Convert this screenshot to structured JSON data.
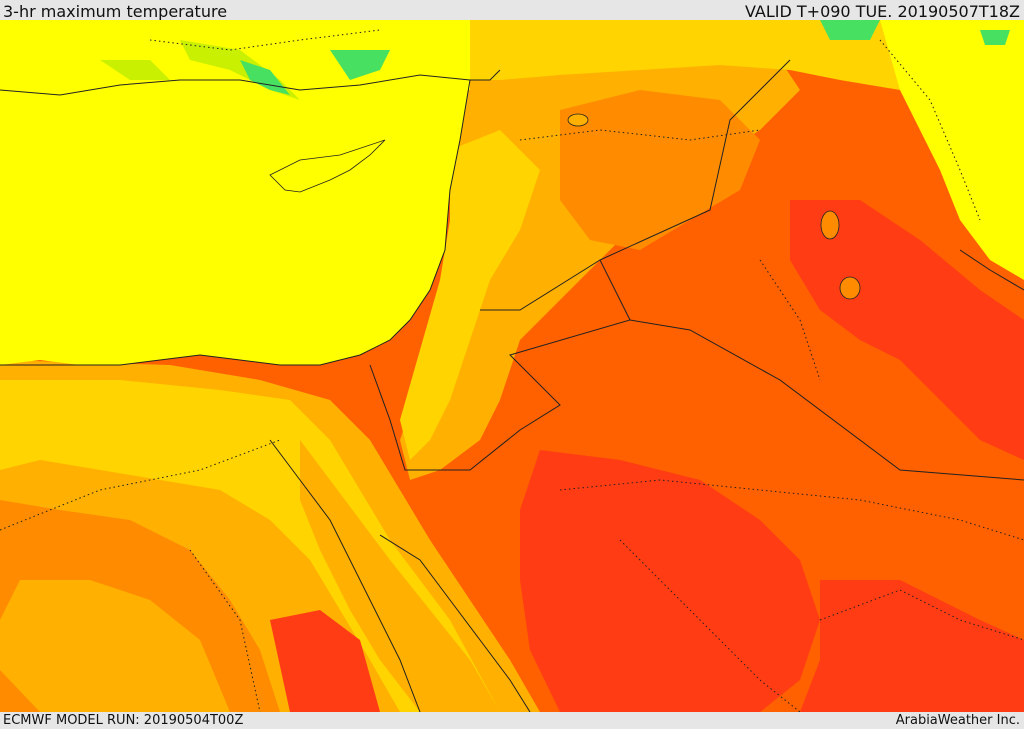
{
  "header": {
    "title": "3-hr maximum temperature",
    "valid_time": "VALID T+090 TUE. 20190507T18Z"
  },
  "footer": {
    "model_run": "ECMWF MODEL RUN: 20190504T00Z",
    "credit": "ArabiaWeather Inc."
  },
  "map": {
    "field": "3-hr maximum temperature",
    "colors": {
      "yellow": "#ffff00",
      "gold": "#ffd400",
      "amber": "#ffb000",
      "orange": "#ff8c00",
      "orange_red": "#ff6000",
      "red": "#ff3c14",
      "green_light": "#c8f000",
      "green": "#48e060"
    }
  }
}
